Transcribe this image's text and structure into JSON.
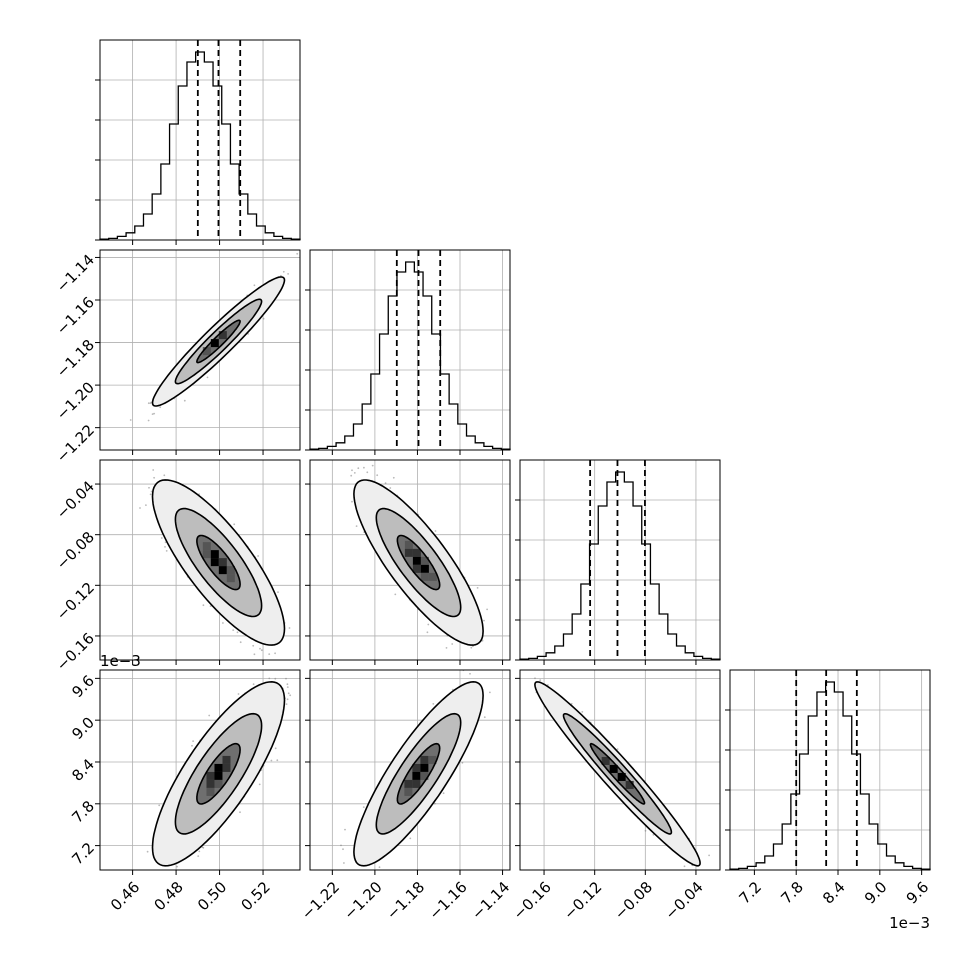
{
  "chart_data": {
    "type": "corner",
    "title": "",
    "parameters": [
      {
        "label": "",
        "lim": [
          0.445,
          0.537
        ],
        "ticks": [
          0.46,
          0.48,
          0.5,
          0.52
        ],
        "tick_labels": [
          "0.46",
          "0.48",
          "0.50",
          "0.52"
        ],
        "offset_text": "",
        "quantiles": [
          0.49,
          0.4995,
          0.5095
        ]
      },
      {
        "label": "",
        "lim": [
          -1.2305,
          -1.1365
        ],
        "ticks": [
          -1.22,
          -1.2,
          -1.18,
          -1.16,
          -1.14
        ],
        "tick_labels": [
          "−1.22",
          "−1.20",
          "−1.18",
          "−1.16",
          "−1.14"
        ],
        "offset_text": "",
        "quantiles": [
          -1.1897,
          -1.1795,
          -1.1693
        ]
      },
      {
        "label": "",
        "lim": [
          -0.179,
          -0.021
        ],
        "ticks": [
          -0.16,
          -0.12,
          -0.08,
          -0.04
        ],
        "tick_labels": [
          "−0.16",
          "−0.12",
          "−0.08",
          "−0.04"
        ],
        "offset_text": "",
        "quantiles": [
          -0.1236,
          -0.102,
          -0.0803
        ]
      },
      {
        "label": "",
        "lim": [
          6.85,
          9.72
        ],
        "ticks": [
          7.2,
          7.8,
          8.4,
          9.0,
          9.6
        ],
        "tick_labels": [
          "7.2",
          "7.8",
          "8.4",
          "9.0",
          "9.6"
        ],
        "offset_text": "1e−3",
        "quantiles": [
          7.8,
          8.23,
          8.67
        ]
      }
    ],
    "histograms": [
      {
        "param": 0,
        "counts": [
          2,
          4,
          9,
          18,
          35,
          65,
          115,
          190,
          290,
          385,
          445,
          470,
          445,
          385,
          290,
          190,
          115,
          65,
          35,
          18,
          9,
          4,
          2
        ],
        "ylim": [
          0,
          500
        ]
      },
      {
        "param": 1,
        "counts": [
          2,
          4,
          9,
          18,
          35,
          65,
          115,
          190,
          290,
          385,
          445,
          470,
          445,
          385,
          290,
          190,
          115,
          65,
          35,
          18,
          9,
          4,
          2
        ],
        "ylim": [
          0,
          500
        ]
      },
      {
        "param": 2,
        "counts": [
          2,
          4,
          9,
          18,
          35,
          65,
          115,
          190,
          290,
          385,
          445,
          470,
          445,
          385,
          290,
          190,
          115,
          65,
          35,
          18,
          9,
          4,
          2
        ],
        "ylim": [
          0,
          500
        ]
      },
      {
        "param": 3,
        "counts": [
          2,
          4,
          9,
          18,
          35,
          65,
          115,
          190,
          290,
          385,
          445,
          470,
          445,
          385,
          290,
          190,
          115,
          65,
          35,
          18,
          9,
          4,
          2
        ],
        "ylim": [
          0,
          500
        ]
      }
    ],
    "pairs": [
      {
        "x": 0,
        "y": 1,
        "mean": [
          0.4995,
          -1.1795
        ],
        "sd": [
          0.01,
          0.01
        ],
        "rho": 0.95,
        "peak": [
          0.5015,
          -1.1765
        ]
      },
      {
        "x": 0,
        "y": 2,
        "mean": [
          0.4995,
          -0.102
        ],
        "sd": [
          0.01,
          0.0215
        ],
        "rho": -0.8,
        "peak": [
          0.5015,
          -0.108
        ]
      },
      {
        "x": 0,
        "y": 3,
        "mean": [
          0.4995,
          8.23
        ],
        "sd": [
          0.01,
          0.435
        ],
        "rho": 0.8,
        "peak": [
          0.4995,
          8.2
        ]
      },
      {
        "x": 1,
        "y": 2,
        "mean": [
          -1.1795,
          -0.102
        ],
        "sd": [
          0.01,
          0.0215
        ],
        "rho": -0.83,
        "peak": [
          -1.1765,
          -0.107
        ]
      },
      {
        "x": 1,
        "y": 3,
        "mean": [
          -1.1795,
          8.23
        ],
        "sd": [
          0.01,
          0.435
        ],
        "rho": 0.85,
        "peak": [
          -1.1805,
          8.2
        ]
      },
      {
        "x": 2,
        "y": 3,
        "mean": [
          -0.102,
          8.23
        ],
        "sd": [
          0.0215,
          0.435
        ],
        "rho": -0.97,
        "peak": [
          -0.105,
          8.3
        ]
      }
    ],
    "contour_levels": [
      0.39,
      0.86,
      0.99
    ],
    "grid": true,
    "colors": {
      "line": "#000000",
      "grid": "#b0b0b0",
      "points": "#808080",
      "background": "#ffffff"
    }
  }
}
